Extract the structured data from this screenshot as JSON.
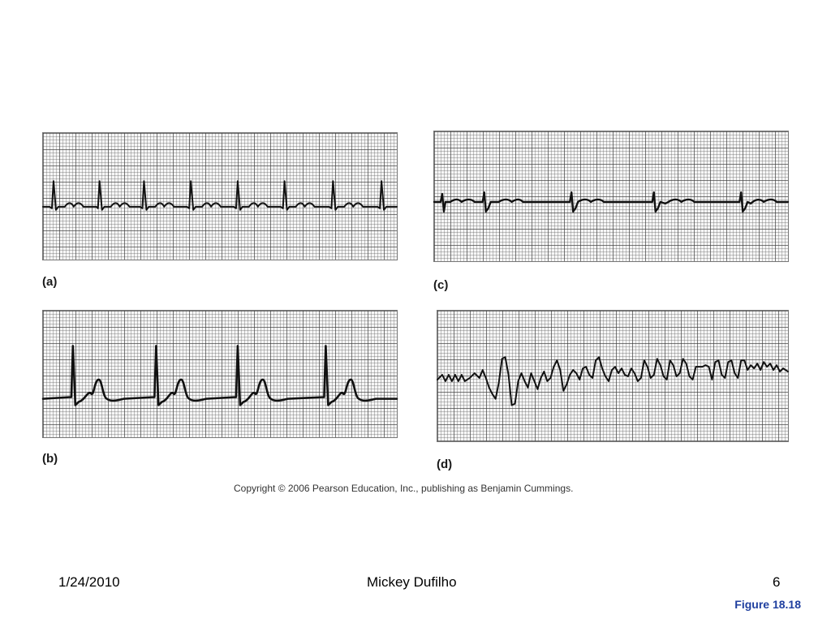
{
  "panels": {
    "a": {
      "label": "(a)"
    },
    "b": {
      "label": "(b)"
    },
    "c": {
      "label": "(c)"
    },
    "d": {
      "label": "(d)"
    }
  },
  "copyright": "Copyright © 2006 Pearson Education, Inc., publishing as Benjamin Cummings.",
  "footer": {
    "date": "1/24/2010",
    "author": "Mickey Dufilho",
    "page": "6",
    "figure": "Figure 18.18"
  },
  "colors": {
    "trace": "#111111",
    "figure_label": "#1f3f9f"
  }
}
